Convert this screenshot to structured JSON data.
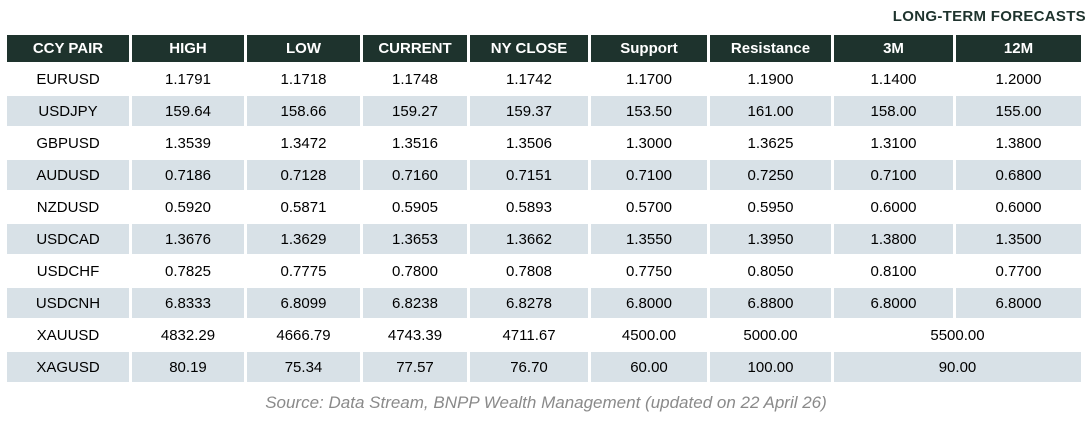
{
  "chart_data": {
    "type": "table",
    "title": "LONG-TERM FORECASTS",
    "columns": [
      "CCY PAIR",
      "HIGH",
      "LOW",
      "CURRENT",
      "NY CLOSE",
      "Support",
      "Resistance",
      "3M",
      "12M"
    ],
    "rows": [
      {
        "cells": [
          "EURUSD",
          "1.1791",
          "1.1718",
          "1.1748",
          "1.1742",
          "1.1700",
          "1.1900",
          "1.1400",
          "1.2000"
        ],
        "merged_forecast": null
      },
      {
        "cells": [
          "USDJPY",
          "159.64",
          "158.66",
          "159.27",
          "159.37",
          "153.50",
          "161.00",
          "158.00",
          "155.00"
        ],
        "merged_forecast": null
      },
      {
        "cells": [
          "GBPUSD",
          "1.3539",
          "1.3472",
          "1.3516",
          "1.3506",
          "1.3000",
          "1.3625",
          "1.3100",
          "1.3800"
        ],
        "merged_forecast": null
      },
      {
        "cells": [
          "AUDUSD",
          "0.7186",
          "0.7128",
          "0.7160",
          "0.7151",
          "0.7100",
          "0.7250",
          "0.7100",
          "0.6800"
        ],
        "merged_forecast": null
      },
      {
        "cells": [
          "NZDUSD",
          "0.5920",
          "0.5871",
          "0.5905",
          "0.5893",
          "0.5700",
          "0.5950",
          "0.6000",
          "0.6000"
        ],
        "merged_forecast": null
      },
      {
        "cells": [
          "USDCAD",
          "1.3676",
          "1.3629",
          "1.3653",
          "1.3662",
          "1.3550",
          "1.3950",
          "1.3800",
          "1.3500"
        ],
        "merged_forecast": null
      },
      {
        "cells": [
          "USDCHF",
          "0.7825",
          "0.7775",
          "0.7800",
          "0.7808",
          "0.7750",
          "0.8050",
          "0.8100",
          "0.7700"
        ],
        "merged_forecast": null
      },
      {
        "cells": [
          "USDCNH",
          "6.8333",
          "6.8099",
          "6.8238",
          "6.8278",
          "6.8000",
          "6.8800",
          "6.8000",
          "6.8000"
        ],
        "merged_forecast": null
      },
      {
        "cells": [
          "XAUUSD",
          "4832.29",
          "4666.79",
          "4743.39",
          "4711.67",
          "4500.00",
          "5000.00"
        ],
        "merged_forecast": "5500.00"
      },
      {
        "cells": [
          "XAGUSD",
          "80.19",
          "75.34",
          "77.57",
          "76.70",
          "60.00",
          "100.00"
        ],
        "merged_forecast": "90.00"
      }
    ],
    "layout": {
      "striped_rows": true,
      "merged_cells_note": "3M and 12M columns merged for XAUUSD and XAGUSD rows"
    }
  },
  "footer": {
    "source_text": "Source: Data Stream, BNPP Wealth Management (updated on 22 April 26)"
  },
  "colors": {
    "header_bg": "#1e332d",
    "header_text": "#ffffff",
    "row_bg": "#ffffff",
    "row_alt_bg": "#d8e1e7",
    "title_text": "#1e332d",
    "body_text": "#000000",
    "source_text": "#8a8a8a"
  }
}
